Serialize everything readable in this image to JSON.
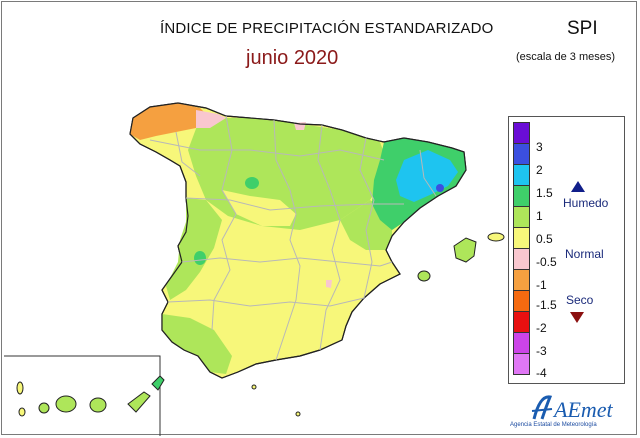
{
  "header": {
    "title": "ÍNDICE DE PRECIPITACIÓN ESTANDARIZADO",
    "period": "junio 2020",
    "index": "SPI",
    "scale_note": "(escala de 3 meses)"
  },
  "legend": {
    "ticks": [
      "3",
      "2",
      "1.5",
      "1",
      "0.5",
      "-0.5",
      "-1",
      "-1.5",
      "-2",
      "-3",
      "-4"
    ],
    "colors": [
      "#6a0dd6",
      "#3b4fe0",
      "#1ec4f0",
      "#3fcf6a",
      "#aee65a",
      "#f7f77a",
      "#f9c7cf",
      "#f5a040",
      "#f56a10",
      "#e81010",
      "#cc44e8",
      "#e077f5"
    ],
    "categories": {
      "wet": "Humedo",
      "normal": "Normal",
      "dry": "Seco"
    }
  },
  "logo": {
    "name": "AEmet",
    "tagline": "Agencia Estatal de Meteorología"
  },
  "map_colors": {
    "normal": "#f7f77a",
    "light_wet": "#aee65a",
    "wet": "#3fcf6a",
    "very_wet": "#1ec4f0",
    "extreme_wet": "#3b4fe0",
    "light_dry": "#f9c7cf",
    "dry": "#f5a040",
    "border": "#b8b8b8",
    "coast": "#222222"
  }
}
